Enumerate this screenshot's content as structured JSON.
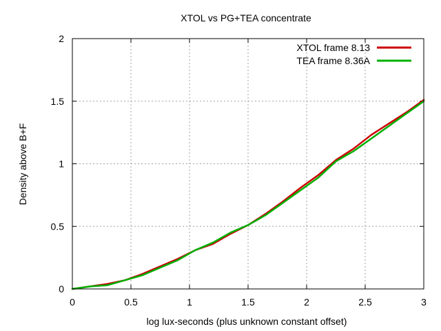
{
  "chart_data": {
    "type": "line",
    "title": "XTOL vs PG+TEA concentrate",
    "xlabel": "log lux-seconds (plus unknown constant offset)",
    "ylabel": "Density above B+F",
    "xlim": [
      0,
      3
    ],
    "ylim": [
      0,
      2
    ],
    "xticks": [
      0,
      0.5,
      1,
      1.5,
      2,
      2.5,
      3
    ],
    "xtick_labels": [
      "0",
      "0.5",
      "1",
      "1.5",
      "2",
      "2.5",
      "3"
    ],
    "yticks": [
      0,
      0.5,
      1,
      1.5,
      2
    ],
    "ytick_labels": [
      "0",
      "0.5",
      "1",
      "1.5",
      "2"
    ],
    "grid": true,
    "legend_position": "top-right",
    "series": [
      {
        "name": "XTOL frame 8.13",
        "color": "#cc0000",
        "x": [
          0,
          0.15,
          0.3,
          0.45,
          0.6,
          0.75,
          0.9,
          1.05,
          1.2,
          1.35,
          1.5,
          1.65,
          1.8,
          1.95,
          2.1,
          2.25,
          2.4,
          2.55,
          2.7,
          2.85,
          3.0
        ],
        "y": [
          0,
          0.02,
          0.04,
          0.07,
          0.12,
          0.18,
          0.24,
          0.31,
          0.36,
          0.44,
          0.51,
          0.6,
          0.7,
          0.81,
          0.91,
          1.03,
          1.12,
          1.23,
          1.32,
          1.41,
          1.51
        ]
      },
      {
        "name": "TEA frame 8.36A",
        "color": "#00b000",
        "x": [
          0,
          0.15,
          0.3,
          0.45,
          0.6,
          0.75,
          0.9,
          1.05,
          1.2,
          1.35,
          1.5,
          1.65,
          1.8,
          1.95,
          2.1,
          2.25,
          2.4,
          2.55,
          2.7,
          2.85,
          3.0
        ],
        "y": [
          0,
          0.02,
          0.03,
          0.07,
          0.11,
          0.17,
          0.23,
          0.31,
          0.37,
          0.45,
          0.51,
          0.59,
          0.69,
          0.79,
          0.89,
          1.02,
          1.1,
          1.2,
          1.3,
          1.4,
          1.5
        ]
      }
    ]
  }
}
